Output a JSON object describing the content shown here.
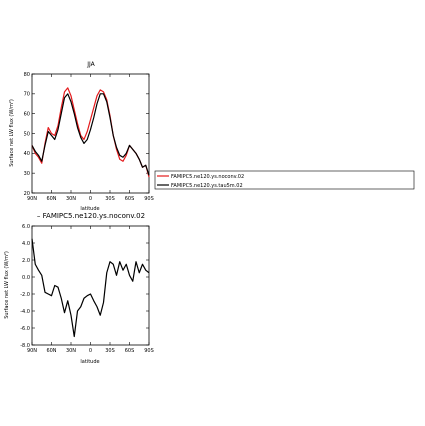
{
  "chart_data": [
    {
      "type": "line",
      "title": "JJA",
      "xlabel": "latitude",
      "ylabel": "Surface net LW flux (W/m²)",
      "ylim": [
        20,
        80
      ],
      "yticks": [
        20,
        30,
        40,
        50,
        60,
        70,
        80
      ],
      "xtick_labels": [
        "90N",
        "60N",
        "30N",
        "0",
        "30S",
        "60S",
        "90S"
      ],
      "xlim": [
        90,
        -90
      ],
      "x": [
        90,
        85,
        80,
        75,
        70,
        65,
        60,
        55,
        50,
        45,
        40,
        35,
        30,
        25,
        20,
        15,
        10,
        5,
        0,
        -5,
        -10,
        -15,
        -20,
        -25,
        -30,
        -35,
        -40,
        -45,
        -50,
        -55,
        -60,
        -65,
        -70,
        -75,
        -80,
        -85,
        -90
      ],
      "series": [
        {
          "name": "FAMIPC5.ne120.ys.noconv.02",
          "color": "#e41a1c",
          "values": [
            44,
            40,
            38,
            35,
            45,
            53,
            50,
            49,
            54,
            63,
            71,
            73,
            69,
            62,
            55,
            49,
            47,
            51,
            57,
            63,
            69,
            72,
            71,
            67,
            59,
            49,
            42,
            37,
            36,
            39,
            44,
            42,
            40,
            37,
            33,
            34,
            28
          ]
        },
        {
          "name": "FAMIPC5.ne120.ys.tau5m.02",
          "color": "#000000",
          "values": [
            44,
            41,
            39,
            36,
            44,
            51,
            49,
            47,
            52,
            60,
            68,
            70,
            66,
            60,
            53,
            48,
            45,
            47,
            52,
            58,
            65,
            70,
            70,
            66,
            58,
            49,
            43,
            39,
            38,
            40,
            44,
            42,
            40,
            37,
            33,
            34,
            29
          ]
        }
      ],
      "legend": "right"
    },
    {
      "type": "line",
      "title": "FAMIPC5.ne120.ys.noconv.02",
      "xlabel": "latitude",
      "ylabel": "Surface net LW flux (W/m²)",
      "ylim": [
        -8,
        6
      ],
      "yticks": [
        -8,
        -6,
        -4,
        -2,
        0,
        2,
        4,
        6
      ],
      "ytick_labels": [
        "-8.0",
        "-6.0",
        "-4.0",
        "-2.0",
        "0.0",
        "2.0",
        "4.0",
        "6.0"
      ],
      "xtick_labels": [
        "90N",
        "60N",
        "30N",
        "0",
        "30S",
        "60S",
        "90S"
      ],
      "xlim": [
        90,
        -90
      ],
      "x": [
        90,
        85,
        80,
        75,
        70,
        65,
        60,
        55,
        50,
        45,
        40,
        35,
        30,
        25,
        20,
        15,
        10,
        5,
        0,
        -5,
        -10,
        -15,
        -20,
        -25,
        -30,
        -35,
        -40,
        -45,
        -50,
        -55,
        -60,
        -65,
        -70,
        -75,
        -80,
        -85,
        -90
      ],
      "series": [
        {
          "name": "",
          "color": "#000000",
          "values": [
            4.5,
            1.5,
            0.8,
            0.2,
            -1.8,
            -2.0,
            -2.2,
            -1.0,
            -1.2,
            -2.5,
            -4.2,
            -2.8,
            -4.5,
            -7.0,
            -4.0,
            -3.5,
            -2.5,
            -2.2,
            -2.0,
            -2.8,
            -3.5,
            -4.5,
            -3.0,
            0.5,
            1.8,
            1.5,
            0.2,
            1.8,
            0.8,
            1.5,
            0.2,
            -0.5,
            1.8,
            0.5,
            1.5,
            0.8,
            0.5
          ]
        }
      ]
    }
  ]
}
